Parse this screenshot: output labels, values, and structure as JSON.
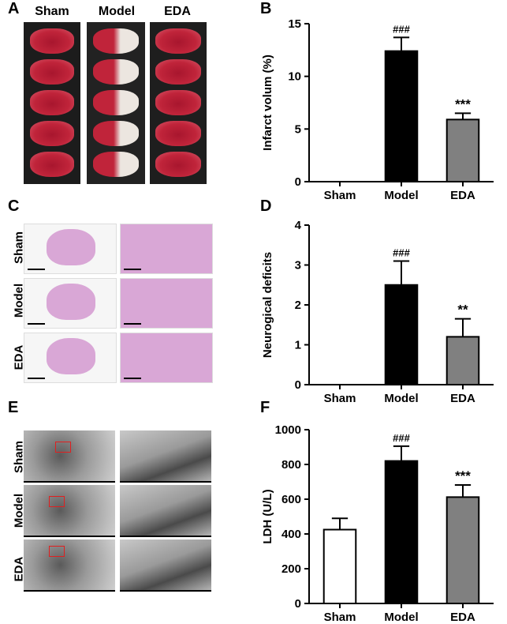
{
  "panels": {
    "A": {
      "label": "A",
      "columns": [
        "Sham",
        "Model",
        "EDA"
      ]
    },
    "C": {
      "label": "C",
      "rows": [
        "Sham",
        "Model",
        "EDA"
      ]
    },
    "E": {
      "label": "E",
      "rows": [
        "Sham",
        "Model",
        "EDA"
      ]
    }
  },
  "colors": {
    "sham": "#ffffff",
    "model": "#000000",
    "eda": "#808080",
    "tissue_red": "#c0243a",
    "infarct_pale": "#ece6e0",
    "he_pink": "#d9a7d6",
    "em_gray": "#9a9a9a"
  },
  "chart_data": [
    {
      "id": "B",
      "label": "B",
      "type": "bar",
      "categories": [
        "Sham",
        "Model",
        "EDA"
      ],
      "values": [
        0,
        12.4,
        5.9
      ],
      "errors": [
        0,
        1.3,
        0.6
      ],
      "annotations": [
        "",
        "###",
        "***"
      ],
      "ylabel": "Infarct volum (%)",
      "xlabel": "",
      "title": "",
      "ylim": [
        0,
        15
      ],
      "yticks": [
        0,
        5,
        10,
        15
      ]
    },
    {
      "id": "D",
      "label": "D",
      "type": "bar",
      "categories": [
        "Sham",
        "Model",
        "EDA"
      ],
      "values": [
        0,
        2.5,
        1.2
      ],
      "errors": [
        0,
        0.6,
        0.45
      ],
      "annotations": [
        "",
        "###",
        "**"
      ],
      "ylabel": "Neurogical deficits",
      "xlabel": "",
      "title": "",
      "ylim": [
        0,
        4
      ],
      "yticks": [
        0,
        1,
        2,
        3,
        4
      ]
    },
    {
      "id": "F",
      "label": "F",
      "type": "bar",
      "categories": [
        "Sham",
        "Model",
        "EDA"
      ],
      "values": [
        425,
        820,
        612
      ],
      "errors": [
        65,
        85,
        70
      ],
      "annotations": [
        "",
        "###",
        "***"
      ],
      "ylabel": "LDH (U/L)",
      "xlabel": "",
      "title": "",
      "ylim": [
        0,
        1000
      ],
      "yticks": [
        0,
        200,
        400,
        600,
        800,
        1000
      ]
    }
  ]
}
